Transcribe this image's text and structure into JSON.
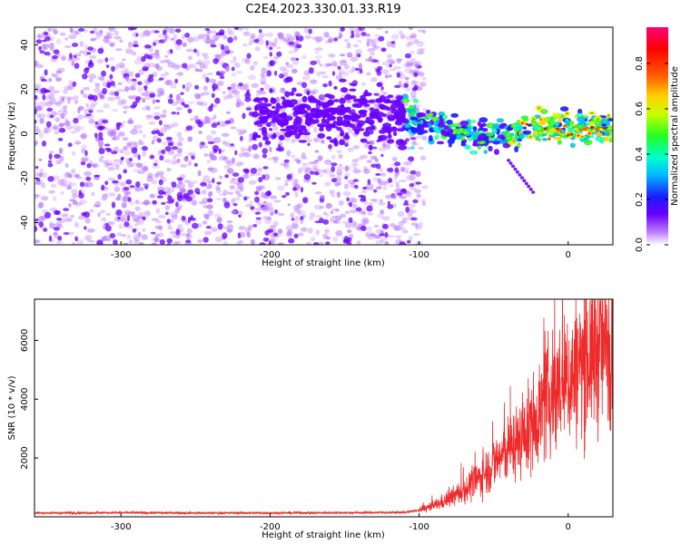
{
  "title": "C2E4.2023.330.01.33.R19",
  "colors": {
    "snr_line": "#ee2b2b",
    "colormap": [
      "#ffffff",
      "#b97aff",
      "#6a00ff",
      "#1b1bff",
      "#00b8ff",
      "#00ffd0",
      "#22ff22",
      "#c8ff00",
      "#ffd200",
      "#ff5a00",
      "#ff0000",
      "#ff0078"
    ]
  },
  "chart_data": [
    {
      "type": "heatmap",
      "xlabel": "Height of straight line (km)",
      "ylabel": "Frequency (Hz)",
      "xlim": [
        -358,
        30
      ],
      "ylim": [
        -50,
        48
      ],
      "xticks": [
        -300,
        -200,
        -100,
        0
      ],
      "yticks": [
        -40,
        -20,
        0,
        20,
        40
      ],
      "colorbar": {
        "label": "Normalized spectral amplitude",
        "range": [
          0,
          0.96
        ],
        "ticks": [
          0.0,
          0.2,
          0.4,
          0.6,
          0.8
        ]
      },
      "features": {
        "noise_region_x": [
          -358,
          -100
        ],
        "signal_band": {
          "x_start": -150,
          "x_end": 30,
          "freq_start": 8,
          "freq_end": 2
        }
      }
    },
    {
      "type": "line",
      "xlabel": "Height of straight line (km)",
      "ylabel": "SNR (10 * v/v)",
      "xlim": [
        -358,
        30
      ],
      "ylim": [
        0,
        7400
      ],
      "xticks": [
        -300,
        -200,
        -100,
        0
      ],
      "yticks": [
        2000,
        4000,
        6000
      ],
      "series": [
        {
          "x": [
            -358,
            -300,
            -250,
            -200,
            -150,
            -110,
            -100,
            -90,
            -80,
            -70,
            -60,
            -50,
            -40,
            -30,
            -20,
            -10,
            0,
            10,
            20,
            30
          ],
          "values": [
            130,
            140,
            130,
            130,
            140,
            150,
            220,
            380,
            600,
            900,
            1300,
            1800,
            2300,
            2700,
            3500,
            4300,
            4600,
            5300,
            5700,
            6100
          ]
        }
      ]
    }
  ]
}
